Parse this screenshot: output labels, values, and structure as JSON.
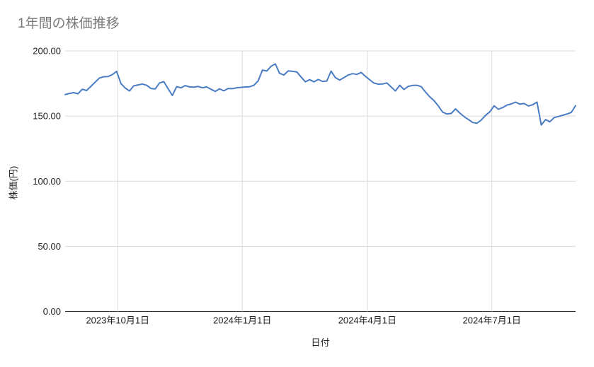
{
  "chart_data": {
    "type": "line",
    "title": "1年間の株価推移",
    "xlabel": "日付",
    "ylabel": "株価(円)",
    "ylim": [
      0,
      200
    ],
    "grid": true,
    "legend": "none",
    "colors": {
      "line": "#4a7cc4",
      "gridline": "#dadada",
      "axis_baseline": "#333333",
      "title_text": "#7a7a7a",
      "tick_text": "#222222",
      "background": "#ffffff"
    },
    "y_ticks": [
      {
        "value": 0,
        "label": "0.00"
      },
      {
        "value": 50,
        "label": "50.00"
      },
      {
        "value": 100,
        "label": "100.00"
      },
      {
        "value": 150,
        "label": "150.00"
      },
      {
        "value": 200,
        "label": "200.00"
      }
    ],
    "x_ticks": [
      {
        "label": "2023年10月1日",
        "pos": 0.103
      },
      {
        "label": "2024年1月1日",
        "pos": 0.347
      },
      {
        "label": "2024年4月1日",
        "pos": 0.592
      },
      {
        "label": "2024年7月1日",
        "pos": 0.836
      }
    ],
    "series": [
      {
        "name": "株価",
        "values": [
          166.5,
          167.4,
          168.0,
          167.1,
          170.6,
          169.6,
          172.8,
          176.0,
          179.2,
          180.2,
          180.3,
          181.8,
          184.3,
          175.0,
          171.5,
          169.3,
          173.2,
          173.9,
          174.6,
          173.6,
          171.2,
          170.8,
          175.4,
          176.4,
          171.0,
          165.8,
          172.6,
          171.6,
          173.4,
          172.4,
          172.2,
          172.7,
          171.7,
          172.4,
          170.6,
          168.9,
          170.9,
          169.4,
          171.2,
          171.0,
          171.7,
          172.0,
          172.3,
          172.5,
          173.6,
          177.0,
          185.3,
          184.6,
          188.2,
          190.0,
          182.8,
          181.5,
          184.7,
          184.3,
          183.9,
          180.0,
          176.3,
          177.9,
          176.3,
          178.1,
          176.6,
          176.9,
          184.5,
          179.5,
          177.6,
          179.5,
          181.5,
          182.5,
          182.0,
          183.5,
          180.5,
          177.8,
          175.3,
          174.5,
          174.6,
          175.4,
          172.3,
          169.2,
          173.6,
          170.4,
          172.8,
          173.5,
          173.6,
          172.6,
          168.5,
          164.8,
          161.8,
          157.8,
          153.0,
          151.6,
          152.0,
          155.5,
          152.3,
          149.6,
          147.4,
          145.1,
          144.5,
          146.9,
          150.5,
          153.2,
          157.9,
          155.2,
          156.5,
          158.4,
          159.3,
          160.7,
          159.2,
          159.6,
          157.7,
          158.7,
          160.7,
          143.2,
          147.3,
          145.6,
          148.8,
          149.7,
          150.6,
          151.6,
          152.8,
          158.0
        ]
      }
    ]
  }
}
